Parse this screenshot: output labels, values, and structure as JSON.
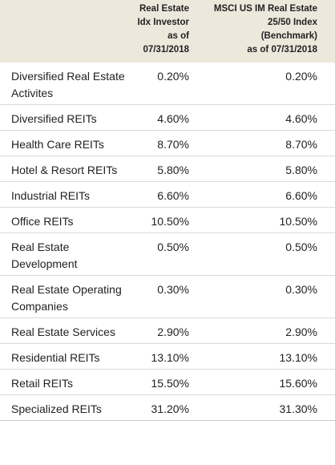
{
  "table": {
    "header": {
      "label": "",
      "fund_lines": [
        "Real Estate",
        "Idx Investor",
        "as of",
        "07/31/2018"
      ],
      "benchmark_lines": [
        "MSCI US IM Real Estate",
        "25/50 Index",
        "(Benchmark)",
        "as of 07/31/2018"
      ]
    },
    "rows": [
      {
        "label": "Diversified Real Estate Activites",
        "fund": "0.20%",
        "benchmark": "0.20%"
      },
      {
        "label": "Diversified REITs",
        "fund": "4.60%",
        "benchmark": "4.60%"
      },
      {
        "label": "Health Care REITs",
        "fund": "8.70%",
        "benchmark": "8.70%"
      },
      {
        "label": "Hotel & Resort REITs",
        "fund": "5.80%",
        "benchmark": "5.80%"
      },
      {
        "label": "Industrial REITs",
        "fund": "6.60%",
        "benchmark": "6.60%"
      },
      {
        "label": "Office REITs",
        "fund": "10.50%",
        "benchmark": "10.50%"
      },
      {
        "label": "Real Estate Development",
        "fund": "0.50%",
        "benchmark": "0.50%"
      },
      {
        "label": "Real Estate Operating Companies",
        "fund": "0.30%",
        "benchmark": "0.30%"
      },
      {
        "label": "Real Estate Services",
        "fund": "2.90%",
        "benchmark": "2.90%"
      },
      {
        "label": "Residential REITs",
        "fund": "13.10%",
        "benchmark": "13.10%"
      },
      {
        "label": "Retail REITs",
        "fund": "15.50%",
        "benchmark": "15.60%"
      },
      {
        "label": "Specialized REITs",
        "fund": "31.20%",
        "benchmark": "31.30%"
      }
    ]
  }
}
